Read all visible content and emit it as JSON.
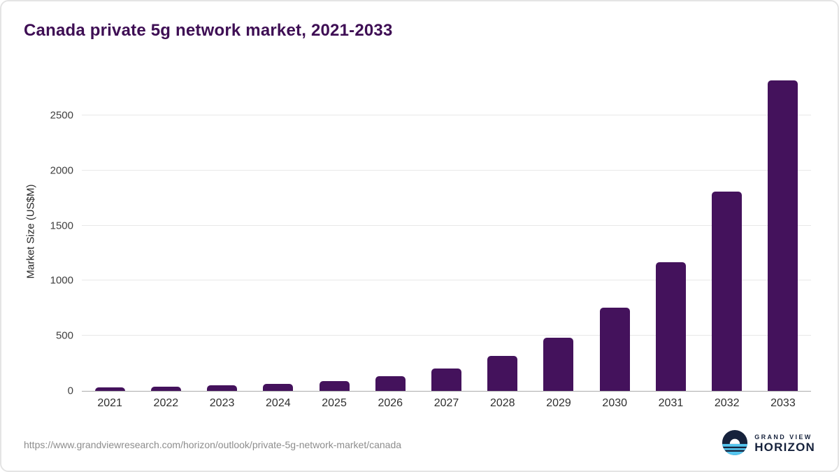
{
  "title": "Canada private 5g network market, 2021-2033",
  "source_url": "https://www.grandviewresearch.com/horizon/outlook/private-5g-network-market/canada",
  "logo": {
    "line1": "GRAND VIEW",
    "line2": "HORIZON"
  },
  "colors": {
    "title": "#3e0e54",
    "bar": "#44125c",
    "grid": "#e8e8e8",
    "axis": "#ababab",
    "logo_navy": "#16223c",
    "logo_blue": "#55c6ef"
  },
  "chart_data": {
    "type": "bar",
    "title": "Canada private 5g network market, 2021-2033",
    "categories": [
      "2021",
      "2022",
      "2023",
      "2024",
      "2025",
      "2026",
      "2027",
      "2028",
      "2029",
      "2030",
      "2031",
      "2032",
      "2033"
    ],
    "values": [
      30,
      40,
      50,
      65,
      90,
      135,
      205,
      315,
      485,
      755,
      1165,
      1810,
      2820
    ],
    "xlabel": "",
    "ylabel": "Market Size (US$M)",
    "ylim": [
      0,
      2900
    ],
    "yticks": [
      0,
      500,
      1000,
      1500,
      2000,
      2500
    ],
    "grid": true,
    "legend": false,
    "bar_color": "#44125c"
  }
}
